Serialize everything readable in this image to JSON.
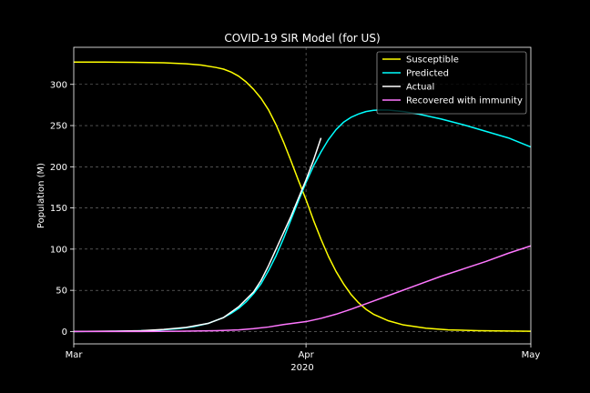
{
  "chart_data": {
    "type": "line",
    "title": "COVID-19 SIR Model (for US)",
    "xlabel": "2020",
    "ylabel": "Population (M)",
    "x_domain_days": [
      0,
      61
    ],
    "xlim": [
      "2020-03-01",
      "2020-05-01"
    ],
    "ylim": [
      -15,
      345
    ],
    "x_ticks": [
      {
        "label": "Mar",
        "date": "2020-03-01"
      },
      {
        "label": "Apr",
        "date": "2020-04-01"
      },
      {
        "label": "May",
        "date": "2020-05-01"
      }
    ],
    "y_ticks": [
      0,
      50,
      100,
      150,
      200,
      250,
      300
    ],
    "grid": true,
    "legend_position": "top-right",
    "colors": {
      "background": "#000000",
      "axes": "#ffffff",
      "grid": "#808080"
    },
    "series": [
      {
        "name": "Susceptible",
        "color": "#ffff00",
        "points": [
          [
            "2020-03-01",
            327
          ],
          [
            "2020-03-05",
            327
          ],
          [
            "2020-03-09",
            326.8
          ],
          [
            "2020-03-13",
            326.2
          ],
          [
            "2020-03-16",
            325
          ],
          [
            "2020-03-18",
            323.5
          ],
          [
            "2020-03-20",
            320.5
          ],
          [
            "2020-03-21",
            318.5
          ],
          [
            "2020-03-22",
            315
          ],
          [
            "2020-03-23",
            310
          ],
          [
            "2020-03-24",
            303
          ],
          [
            "2020-03-25",
            294
          ],
          [
            "2020-03-26",
            283
          ],
          [
            "2020-03-27",
            269
          ],
          [
            "2020-03-28",
            251
          ],
          [
            "2020-03-29",
            230
          ],
          [
            "2020-03-30",
            207
          ],
          [
            "2020-03-31",
            183
          ],
          [
            "2020-04-01",
            160
          ],
          [
            "2020-04-02",
            135
          ],
          [
            "2020-04-03",
            112
          ],
          [
            "2020-04-04",
            91
          ],
          [
            "2020-04-05",
            73
          ],
          [
            "2020-04-06",
            58
          ],
          [
            "2020-04-07",
            45
          ],
          [
            "2020-04-08",
            35
          ],
          [
            "2020-04-09",
            27
          ],
          [
            "2020-04-10",
            21
          ],
          [
            "2020-04-12",
            13
          ],
          [
            "2020-04-14",
            8
          ],
          [
            "2020-04-17",
            4
          ],
          [
            "2020-04-20",
            2
          ],
          [
            "2020-04-24",
            1
          ],
          [
            "2020-05-01",
            0.3
          ]
        ]
      },
      {
        "name": "Predicted",
        "color": "#00ffff",
        "points": [
          [
            "2020-03-01",
            0
          ],
          [
            "2020-03-05",
            0.2
          ],
          [
            "2020-03-09",
            0.6
          ],
          [
            "2020-03-12",
            1.5
          ],
          [
            "2020-03-15",
            3.5
          ],
          [
            "2020-03-17",
            6
          ],
          [
            "2020-03-19",
            10
          ],
          [
            "2020-03-21",
            17
          ],
          [
            "2020-03-22",
            22
          ],
          [
            "2020-03-23",
            28
          ],
          [
            "2020-03-24",
            36
          ],
          [
            "2020-03-25",
            46
          ],
          [
            "2020-03-26",
            58
          ],
          [
            "2020-03-27",
            74
          ],
          [
            "2020-03-28",
            92
          ],
          [
            "2020-03-29",
            113
          ],
          [
            "2020-03-30",
            136
          ],
          [
            "2020-03-31",
            159
          ],
          [
            "2020-04-01",
            181
          ],
          [
            "2020-04-02",
            201
          ],
          [
            "2020-04-03",
            218
          ],
          [
            "2020-04-04",
            233
          ],
          [
            "2020-04-05",
            245
          ],
          [
            "2020-04-06",
            254
          ],
          [
            "2020-04-07",
            260
          ],
          [
            "2020-04-08",
            264
          ],
          [
            "2020-04-09",
            267
          ],
          [
            "2020-04-10",
            268.5
          ],
          [
            "2020-04-11",
            269
          ],
          [
            "2020-04-12",
            268.8
          ],
          [
            "2020-04-14",
            267
          ],
          [
            "2020-04-16",
            264
          ],
          [
            "2020-04-19",
            258
          ],
          [
            "2020-04-22",
            251
          ],
          [
            "2020-04-25",
            243
          ],
          [
            "2020-04-28",
            235
          ],
          [
            "2020-05-01",
            224
          ]
        ]
      },
      {
        "name": "Actual",
        "color": "#ffffff",
        "points": [
          [
            "2020-03-01",
            0
          ],
          [
            "2020-03-06",
            0.4
          ],
          [
            "2020-03-10",
            1
          ],
          [
            "2020-03-13",
            2.5
          ],
          [
            "2020-03-16",
            5
          ],
          [
            "2020-03-19",
            10
          ],
          [
            "2020-03-21",
            17
          ],
          [
            "2020-03-23",
            30
          ],
          [
            "2020-03-25",
            48
          ],
          [
            "2020-03-26",
            62
          ],
          [
            "2020-03-27",
            80
          ],
          [
            "2020-03-28",
            100
          ],
          [
            "2020-03-29",
            120
          ],
          [
            "2020-03-30",
            140
          ],
          [
            "2020-03-31",
            162
          ],
          [
            "2020-04-01",
            184
          ],
          [
            "2020-04-02",
            208
          ],
          [
            "2020-04-03",
            235
          ]
        ]
      },
      {
        "name": "Recovered with immunity",
        "color": "#ff77ff",
        "points": [
          [
            "2020-03-01",
            0
          ],
          [
            "2020-03-10",
            0.1
          ],
          [
            "2020-03-15",
            0.3
          ],
          [
            "2020-03-20",
            1
          ],
          [
            "2020-03-23",
            2
          ],
          [
            "2020-03-25",
            3.5
          ],
          [
            "2020-03-27",
            5.5
          ],
          [
            "2020-03-29",
            8.5
          ],
          [
            "2020-04-01",
            12
          ],
          [
            "2020-04-03",
            16
          ],
          [
            "2020-04-05",
            21
          ],
          [
            "2020-04-07",
            27
          ],
          [
            "2020-04-10",
            37
          ],
          [
            "2020-04-13",
            47
          ],
          [
            "2020-04-16",
            57
          ],
          [
            "2020-04-19",
            67
          ],
          [
            "2020-04-22",
            76
          ],
          [
            "2020-04-25",
            85
          ],
          [
            "2020-04-28",
            95
          ],
          [
            "2020-05-01",
            104
          ]
        ]
      }
    ]
  }
}
